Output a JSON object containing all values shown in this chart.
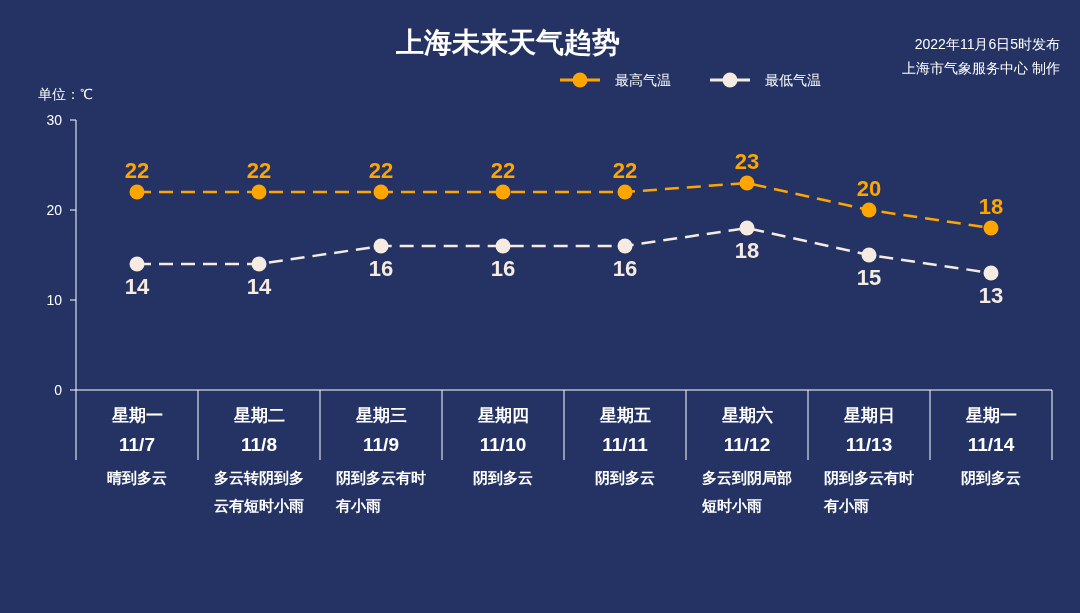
{
  "chart_data": {
    "type": "line",
    "title": "上海未来天气趋势",
    "ylabel": "单位：℃",
    "annotations": [
      "2022年11月6日5时发布",
      "上海市气象服务中心 制作"
    ],
    "categories": [
      "星期一\n11/7\n晴到多云",
      "星期二\n11/8\n多云转阴到多云有短时小雨",
      "星期三\n11/9\n阴到多云有时有小雨",
      "星期四\n11/10\n阴到多云",
      "星期五\n11/11\n阴到多云",
      "星期六\n11/12\n多云到阴局部短时小雨",
      "星期日\n11/13\n阴到多云有时有小雨",
      "星期一\n11/14\n阴到多云"
    ],
    "series": [
      {
        "name": "最高气温",
        "color": "#ffa500",
        "values": [
          22,
          22,
          22,
          22,
          22,
          23,
          20,
          18
        ]
      },
      {
        "name": "最低气温",
        "color": "#f5ebe0",
        "values": [
          14,
          14,
          16,
          16,
          16,
          18,
          15,
          13
        ]
      }
    ],
    "ylim": [
      0,
      30
    ],
    "yticks": [
      0,
      10,
      20,
      30
    ],
    "legend": "top",
    "marker": "circle",
    "line_style": "dashed",
    "data_labels": true
  }
}
